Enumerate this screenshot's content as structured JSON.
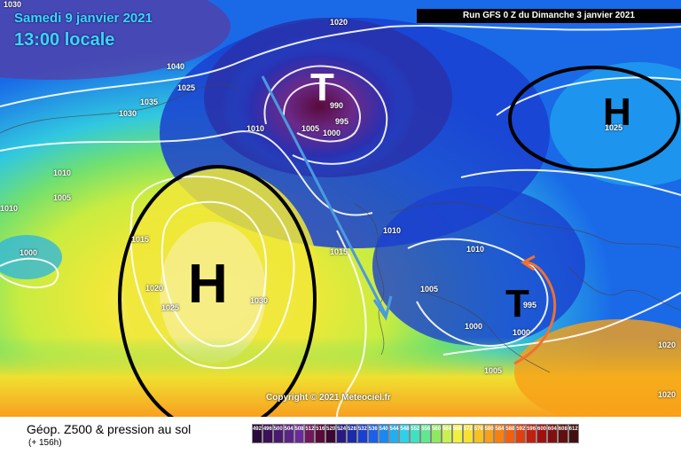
{
  "header": {
    "date": "Samedi 9 janvier 2021",
    "local_time": "13:00 locale",
    "run": "Run GFS 0 Z du Dimanche 3 janvier 2021"
  },
  "copyright": "Copyright © 2021 Meteociel.fr",
  "legend": {
    "title": "Géop. Z500 & pression au sol",
    "subtitle": "(+ 156h)",
    "scale": [
      "492",
      "496",
      "500",
      "504",
      "508",
      "512",
      "516",
      "520",
      "524",
      "528",
      "532",
      "536",
      "540",
      "544",
      "548",
      "552",
      "556",
      "560",
      "564",
      "568",
      "572",
      "576",
      "580",
      "584",
      "588",
      "592",
      "596",
      "600",
      "604",
      "608",
      "612"
    ],
    "scale_colors": [
      "#2a0a3a",
      "#3b1054",
      "#4a1a6e",
      "#5a2484",
      "#6a2a9a",
      "#6e1a5a",
      "#5a0a3a",
      "#3a0830",
      "#2a1a80",
      "#1a2aa8",
      "#1a40d0",
      "#1a60e8",
      "#1a88f0",
      "#20b0f0",
      "#30d0e8",
      "#40e0c0",
      "#60e890",
      "#90e860",
      "#c8f050",
      "#f0f040",
      "#f8e030",
      "#f8c020",
      "#f8a018",
      "#f88010",
      "#f06010",
      "#e04010",
      "#c02010",
      "#a01010",
      "#801010",
      "#601010",
      "#401010"
    ]
  },
  "annotations": {
    "high_pressure_label": "H",
    "low_pressure_label": "T"
  },
  "isobar_labels": [
    "1030",
    "1040",
    "1035",
    "1025",
    "1030",
    "1020",
    "1010",
    "995",
    "990",
    "1005",
    "1000",
    "1010",
    "1005",
    "1010",
    "1000",
    "1020",
    "1025",
    "1030",
    "1010",
    "1015",
    "1015",
    "1010",
    "1005",
    "1000",
    "995",
    "1000",
    "1005",
    "1025",
    "1020",
    "1020"
  ]
}
